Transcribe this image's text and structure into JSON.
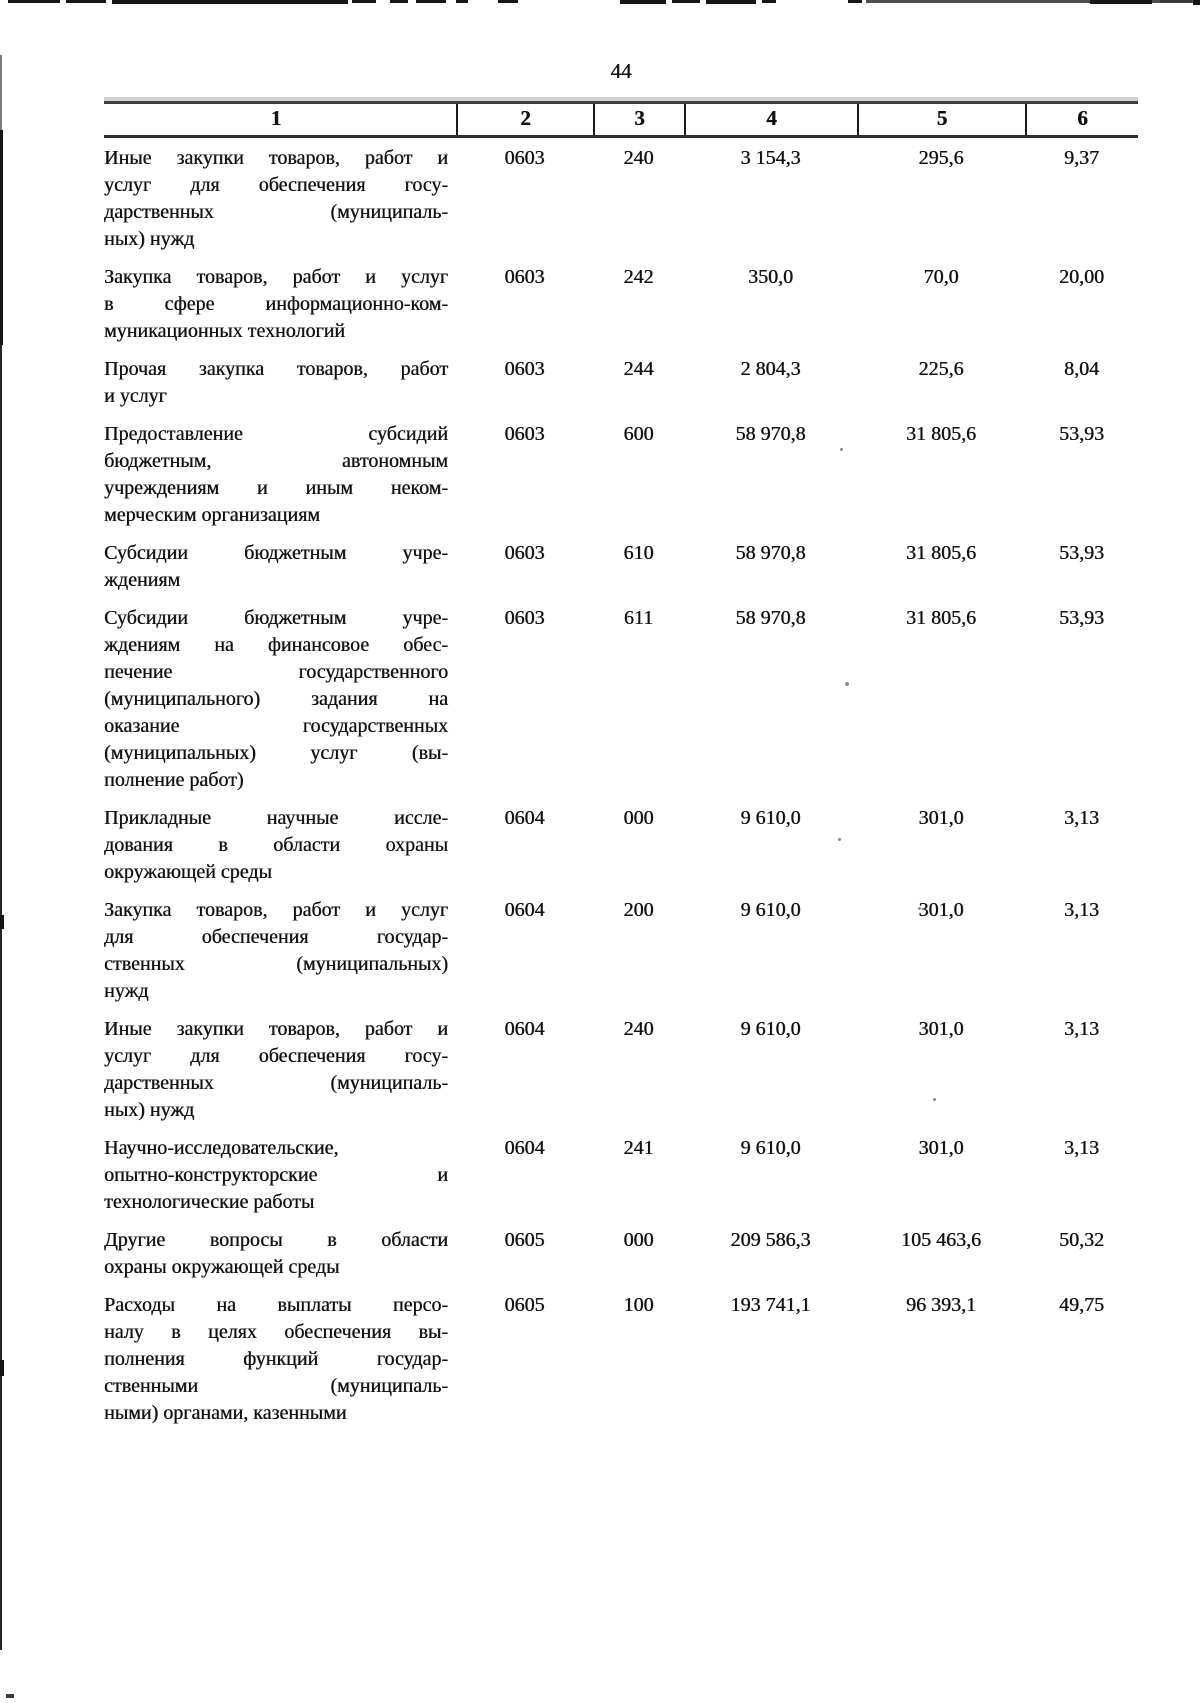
{
  "page": {
    "number": "44"
  },
  "table": {
    "headers": [
      "1",
      "2",
      "3",
      "4",
      "5",
      "6"
    ],
    "rows": [
      {
        "desc": "Иные закупки товаров, работ и\nуслуг для обеспечения госу-\nдарственных (муниципаль-\nных) нужд",
        "col2": "0603",
        "col3": "240",
        "col4": "3 154,3",
        "col5": "295,6",
        "col6": "9,37"
      },
      {
        "desc": "Закупка товаров, работ и услуг\nв сфере информационно-ком-\nмуникационных технологий",
        "col2": "0603",
        "col3": "242",
        "col4": "350,0",
        "col5": "70,0",
        "col6": "20,00"
      },
      {
        "desc": "Прочая закупка товаров, работ\nи услуг",
        "col2": "0603",
        "col3": "244",
        "col4": "2 804,3",
        "col5": "225,6",
        "col6": "8,04"
      },
      {
        "desc": "Предоставление субсидий\nбюджетным, автономным\nучреждениям и иным неком-\nмерческим организациям",
        "col2": "0603",
        "col3": "600",
        "col4": "58 970,8",
        "col5": "31 805,6",
        "col6": "53,93"
      },
      {
        "desc": "Субсидии бюджетным учре-\nждениям",
        "col2": "0603",
        "col3": "610",
        "col4": "58 970,8",
        "col5": "31 805,6",
        "col6": "53,93"
      },
      {
        "desc": "Субсидии бюджетным учре-\nждениям на финансовое обес-\nпечение государственного\n(муниципального) задания на\nоказание государственных\n(муниципальных) услуг (вы-\nполнение работ)",
        "col2": "0603",
        "col3": "611",
        "col4": "58 970,8",
        "col5": "31 805,6",
        "col6": "53,93"
      },
      {
        "desc": "Прикладные научные иссле-\nдования в области охраны\nокружающей среды",
        "col2": "0604",
        "col3": "000",
        "col4": "9 610,0",
        "col5": "301,0",
        "col6": "3,13"
      },
      {
        "desc": "Закупка товаров, работ и услуг\nдля обеспечения государ-\nственных (муниципальных)\nнужд",
        "col2": "0604",
        "col3": "200",
        "col4": "9 610,0",
        "col5": "301,0",
        "col6": "3,13"
      },
      {
        "desc": "Иные закупки товаров, работ и\nуслуг для обеспечения госу-\nдарственных (муниципаль-\nных) нужд",
        "col2": "0604",
        "col3": "240",
        "col4": "9 610,0",
        "col5": "301,0",
        "col6": "3,13"
      },
      {
        "desc": "Научно-исследовательские,\nопытно-конструкторские и\nтехнологические работы",
        "col2": "0604",
        "col3": "241",
        "col4": "9 610,0",
        "col5": "301,0",
        "col6": "3,13"
      },
      {
        "desc": "Другие вопросы в области\nохраны окружающей среды",
        "col2": "0605",
        "col3": "000",
        "col4": "209 586,3",
        "col5": "105 463,6",
        "col6": "50,32"
      },
      {
        "desc": "Расходы на выплаты персо-\nналу в целях обеспечения вы-\nполнения функций государ-\nственными (муниципаль-\nными) органами, казенными",
        "col2": "0605",
        "col3": "100",
        "col4": "193 741,1",
        "col5": "96 393,1",
        "col6": "49,75"
      }
    ]
  }
}
